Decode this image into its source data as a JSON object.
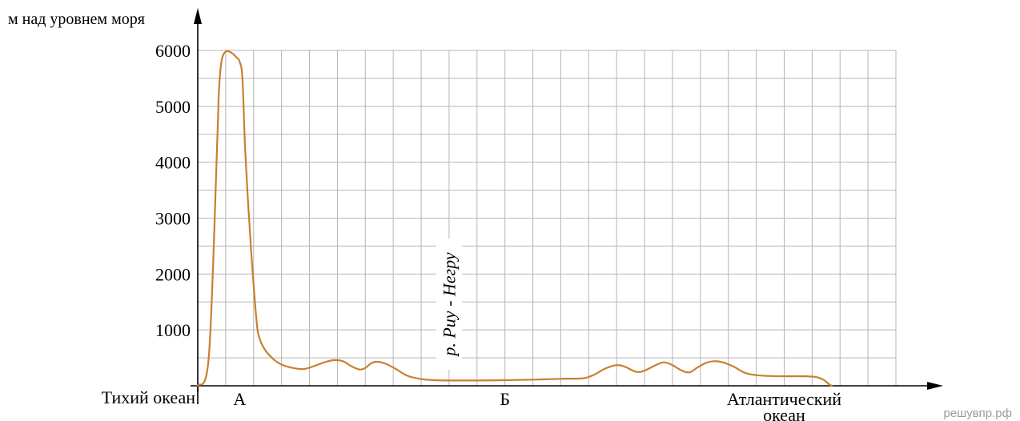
{
  "chart_data": {
    "type": "line",
    "ylabel": "м над уровнем моря",
    "y_ticks": [
      "1000",
      "2000",
      "3000",
      "4000",
      "5000",
      "6000"
    ],
    "ylim": [
      0,
      6000
    ],
    "grid": true,
    "x_start_label": "Тихий океан",
    "x_markers": [
      {
        "label": "А",
        "x": 1.5
      },
      {
        "label": "Б",
        "x": 11
      },
      {
        "label": "Атлантический",
        "label2": "океан",
        "x": 21
      }
    ],
    "annotation": {
      "text": "р. Риу - Негру",
      "x": 9
    },
    "xlim": [
      0,
      25
    ],
    "series": [
      {
        "color": "#c8802e",
        "points": [
          [
            0,
            0
          ],
          [
            0.4,
            550
          ],
          [
            0.7,
            4400
          ],
          [
            0.75,
            5200
          ],
          [
            0.85,
            5800
          ],
          [
            1.0,
            5980
          ],
          [
            1.2,
            5960
          ],
          [
            1.4,
            5870
          ],
          [
            1.5,
            5800
          ],
          [
            1.6,
            5500
          ],
          [
            1.7,
            4200
          ],
          [
            1.9,
            2500
          ],
          [
            2.1,
            1200
          ],
          [
            2.2,
            870
          ],
          [
            2.4,
            650
          ],
          [
            2.7,
            480
          ],
          [
            3.0,
            380
          ],
          [
            3.4,
            320
          ],
          [
            3.8,
            300
          ],
          [
            4.2,
            360
          ],
          [
            4.6,
            430
          ],
          [
            4.9,
            460
          ],
          [
            5.2,
            440
          ],
          [
            5.5,
            350
          ],
          [
            5.8,
            290
          ],
          [
            6.0,
            320
          ],
          [
            6.2,
            400
          ],
          [
            6.4,
            430
          ],
          [
            6.7,
            400
          ],
          [
            7.1,
            300
          ],
          [
            7.5,
            180
          ],
          [
            8.0,
            120
          ],
          [
            8.5,
            100
          ],
          [
            9.0,
            95
          ],
          [
            10.0,
            95
          ],
          [
            11.0,
            100
          ],
          [
            12.0,
            110
          ],
          [
            13.0,
            125
          ],
          [
            13.8,
            135
          ],
          [
            14.2,
            200
          ],
          [
            14.6,
            310
          ],
          [
            15.0,
            370
          ],
          [
            15.3,
            340
          ],
          [
            15.7,
            250
          ],
          [
            16.0,
            270
          ],
          [
            16.4,
            370
          ],
          [
            16.7,
            420
          ],
          [
            17.0,
            370
          ],
          [
            17.3,
            280
          ],
          [
            17.6,
            240
          ],
          [
            17.9,
            330
          ],
          [
            18.2,
            410
          ],
          [
            18.5,
            440
          ],
          [
            18.8,
            420
          ],
          [
            19.2,
            340
          ],
          [
            19.6,
            230
          ],
          [
            20.0,
            190
          ],
          [
            20.5,
            175
          ],
          [
            21.0,
            170
          ],
          [
            21.6,
            170
          ],
          [
            22.1,
            160
          ],
          [
            22.4,
            110
          ],
          [
            22.6,
            30
          ],
          [
            22.7,
            0
          ]
        ]
      }
    ]
  },
  "watermark": "решувпр.рф"
}
